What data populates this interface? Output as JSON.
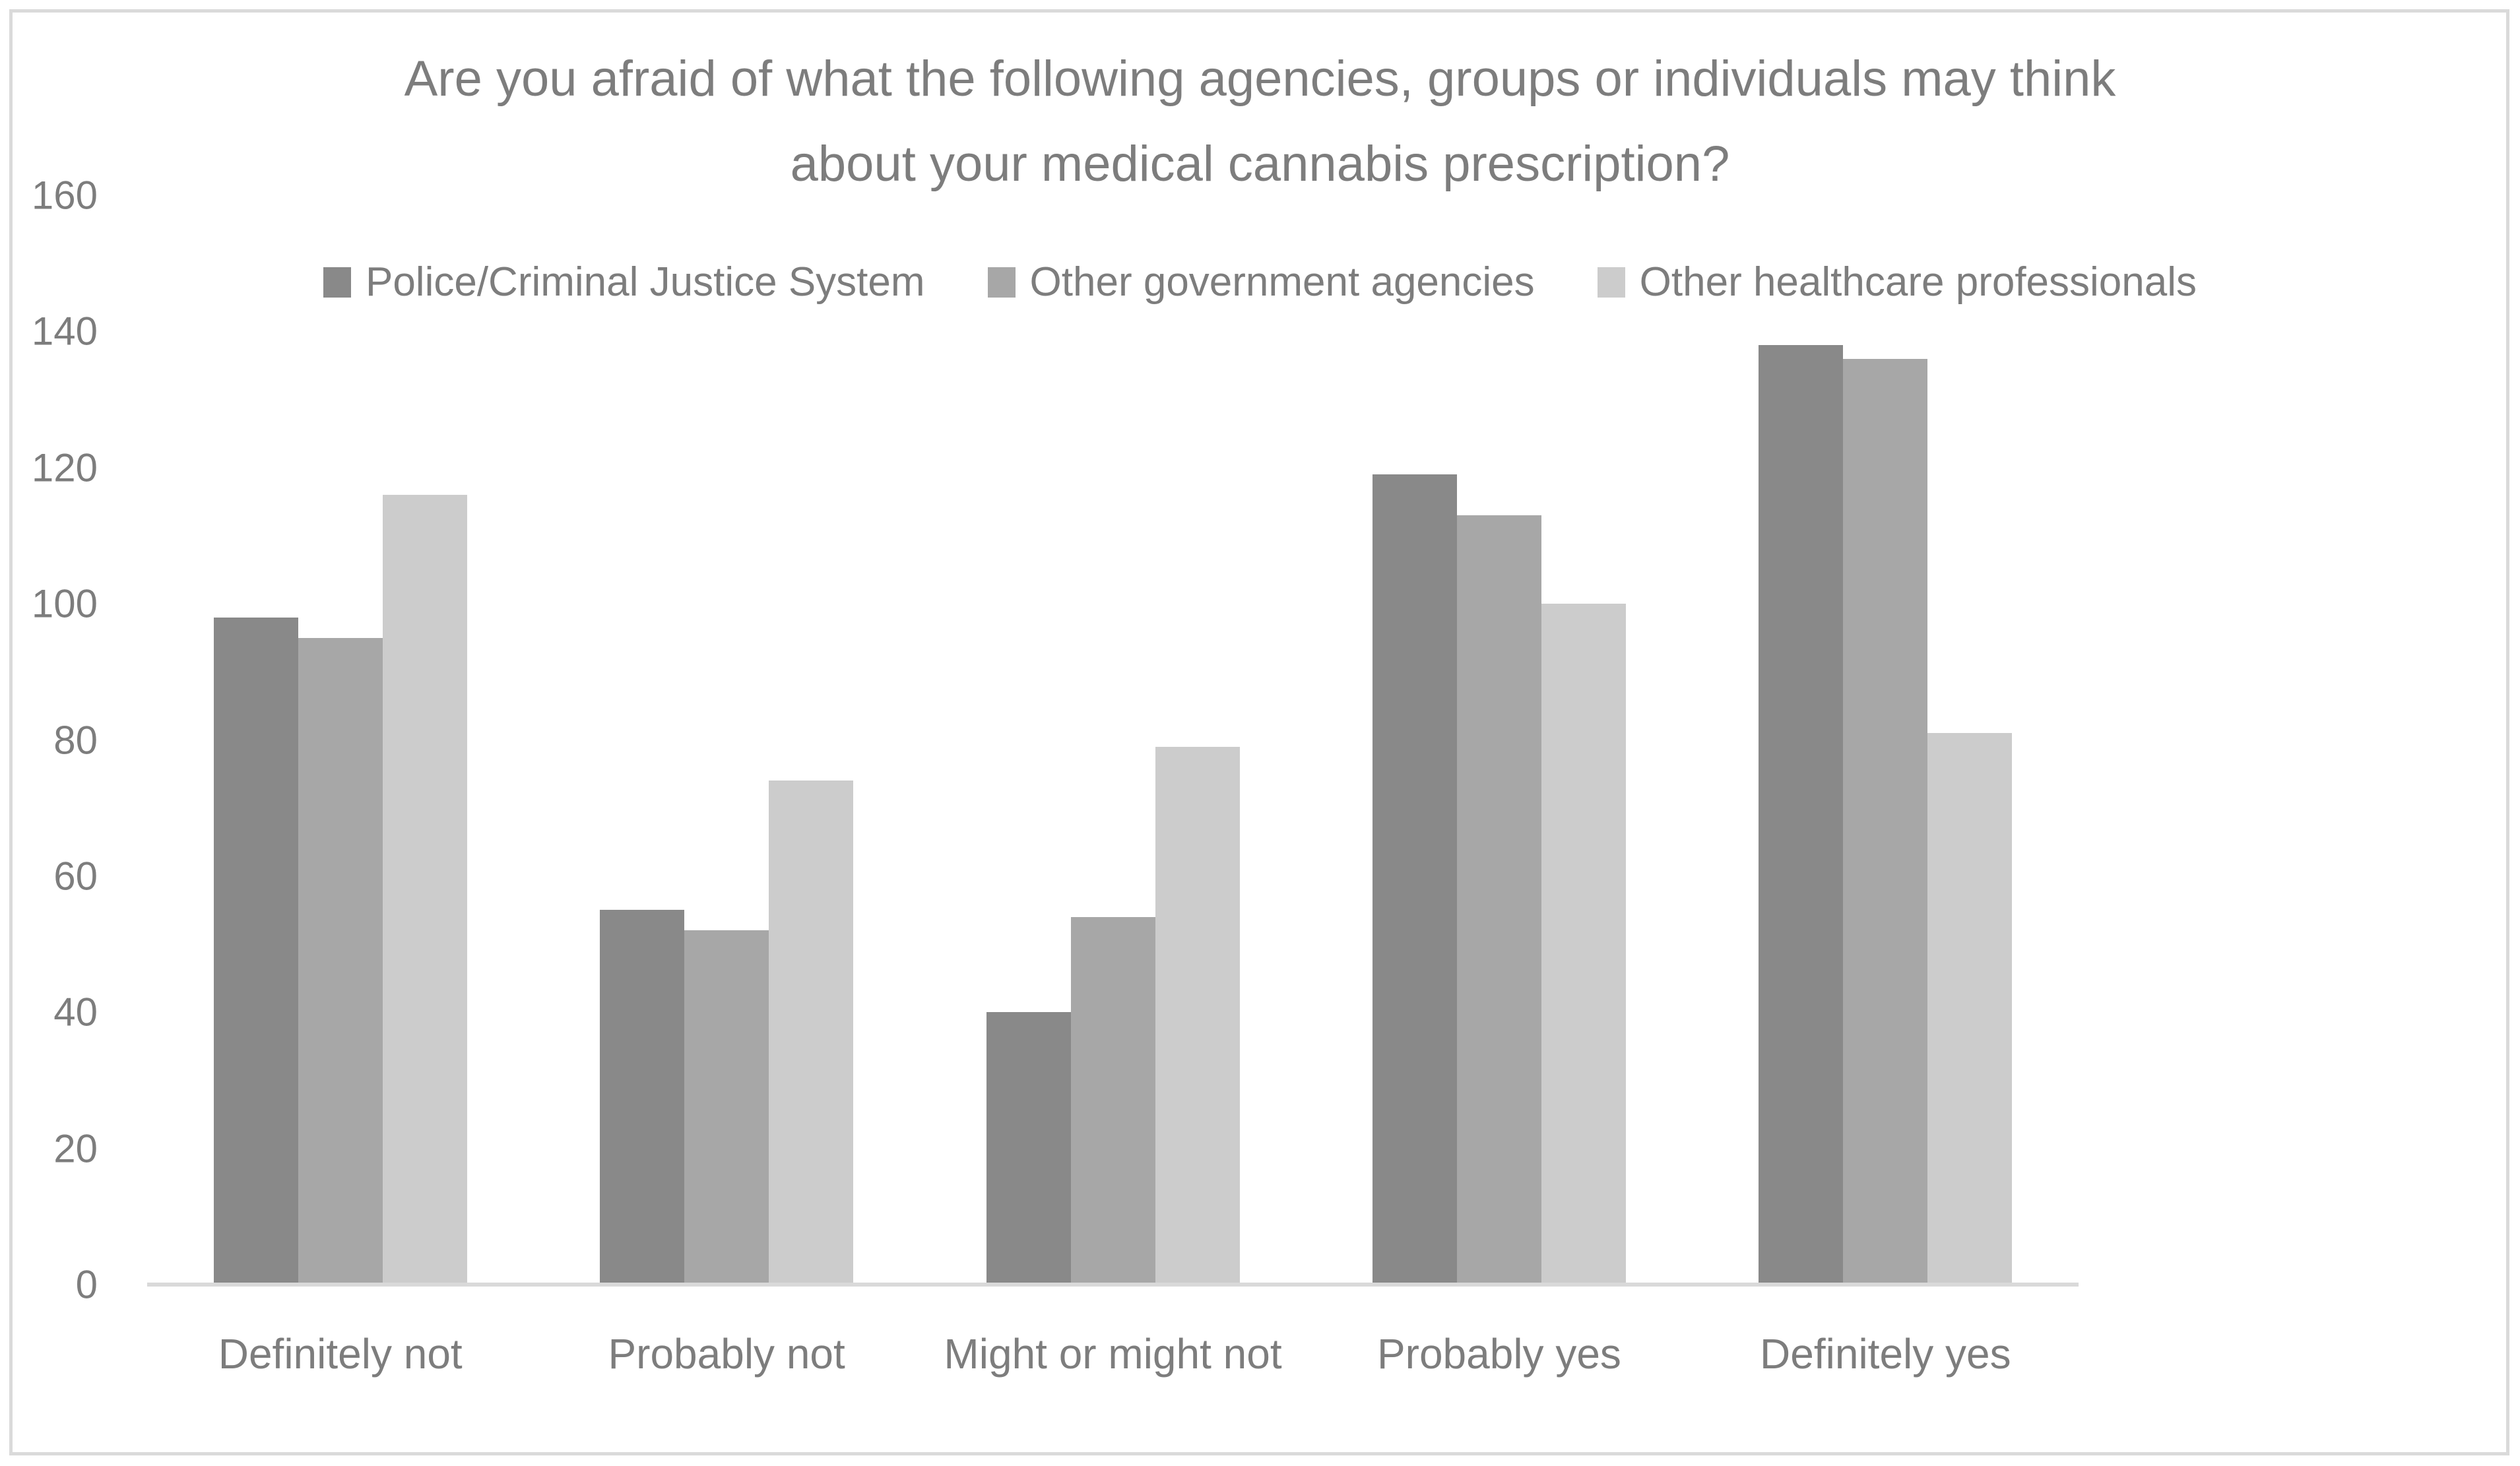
{
  "chart_data": {
    "type": "bar",
    "title": "Are you afraid of what the following agencies, groups or individuals may think about your medical cannabis prescription?",
    "categories": [
      "Definitely not",
      "Probably not",
      "Might or might not",
      "Probably yes",
      "Definitely yes"
    ],
    "series": [
      {
        "name": "Police/Criminal Justice System",
        "color": "#898989",
        "values": [
          98,
          55,
          40,
          119,
          138
        ]
      },
      {
        "name": "Other government agencies",
        "color": "#a7a7a7",
        "values": [
          95,
          52,
          54,
          113,
          136
        ]
      },
      {
        "name": "Other healthcare professionals",
        "color": "#cccccc",
        "values": [
          116,
          74,
          79,
          100,
          81
        ]
      }
    ],
    "ylim": [
      0,
      160
    ],
    "yticks": [
      0,
      20,
      40,
      60,
      80,
      100,
      120,
      140,
      160
    ],
    "xlabel": "",
    "ylabel": "",
    "grid": false,
    "legend_position": "top",
    "axis_line_color": "#d9d9d9",
    "text_color": "#7d7d7d"
  }
}
